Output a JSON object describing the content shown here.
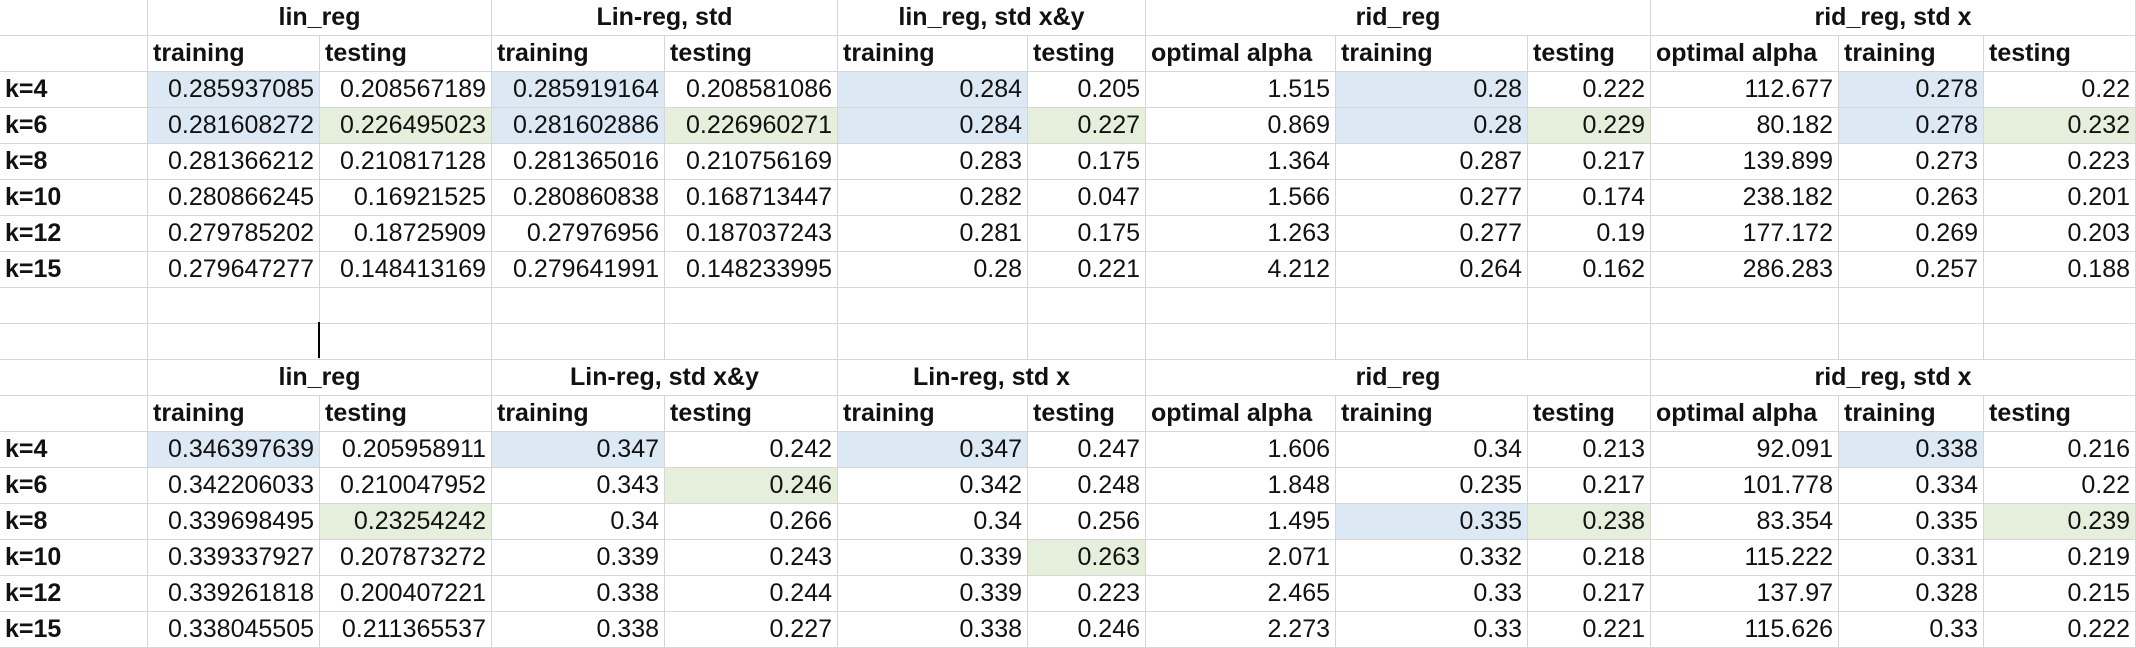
{
  "colors": {
    "blue": "#dde8f5",
    "green": "#e6efdb",
    "grid": "#d6d6d6"
  },
  "rows": [
    "k=4",
    "k=6",
    "k=8",
    "k=10",
    "k=12",
    "k=15"
  ],
  "sub_headers": [
    "training",
    "testing",
    "training",
    "testing",
    "training",
    "testing",
    "optimal alpha",
    "training",
    "testing",
    "optimal alpha",
    "training",
    "testing"
  ],
  "tables": [
    {
      "groups": [
        "lin_reg",
        "Lin-reg, std",
        "lin_reg, std x&y",
        "rid_reg",
        "rid_reg, std x"
      ],
      "data": [
        [
          "0.285937085",
          "0.208567189",
          "0.285919164",
          "0.208581086",
          "0.284",
          "0.205",
          "1.515",
          "0.28",
          "0.222",
          "112.677",
          "0.278",
          "0.22"
        ],
        [
          "0.281608272",
          "0.226495023",
          "0.281602886",
          "0.226960271",
          "0.284",
          "0.227",
          "0.869",
          "0.28",
          "0.229",
          "80.182",
          "0.278",
          "0.232"
        ],
        [
          "0.281366212",
          "0.210817128",
          "0.281365016",
          "0.210756169",
          "0.283",
          "0.175",
          "1.364",
          "0.287",
          "0.217",
          "139.899",
          "0.273",
          "0.223"
        ],
        [
          "0.280866245",
          "0.16921525",
          "0.280860838",
          "0.168713447",
          "0.282",
          "0.047",
          "1.566",
          "0.277",
          "0.174",
          "238.182",
          "0.263",
          "0.201"
        ],
        [
          "0.279785202",
          "0.18725909",
          "0.27976956",
          "0.187037243",
          "0.281",
          "0.175",
          "1.263",
          "0.277",
          "0.19",
          "177.172",
          "0.269",
          "0.203"
        ],
        [
          "0.279647277",
          "0.148413169",
          "0.279641991",
          "0.148233995",
          "0.28",
          "0.221",
          "4.212",
          "0.264",
          "0.162",
          "286.283",
          "0.257",
          "0.188"
        ]
      ],
      "highlights": [
        [
          0,
          0,
          "blue"
        ],
        [
          0,
          2,
          "blue"
        ],
        [
          0,
          4,
          "blue"
        ],
        [
          0,
          7,
          "blue"
        ],
        [
          0,
          10,
          "blue"
        ],
        [
          1,
          0,
          "blue"
        ],
        [
          1,
          2,
          "blue"
        ],
        [
          1,
          4,
          "blue"
        ],
        [
          1,
          7,
          "blue"
        ],
        [
          1,
          10,
          "blue"
        ],
        [
          1,
          1,
          "green"
        ],
        [
          1,
          3,
          "green"
        ],
        [
          1,
          5,
          "green"
        ],
        [
          1,
          8,
          "green"
        ],
        [
          1,
          11,
          "green"
        ]
      ]
    },
    {
      "groups": [
        "lin_reg",
        "Lin-reg, std x&y",
        "Lin-reg, std x",
        "rid_reg",
        "rid_reg, std x"
      ],
      "data": [
        [
          "0.346397639",
          "0.205958911",
          "0.347",
          "0.242",
          "0.347",
          "0.247",
          "1.606",
          "0.34",
          "0.213",
          "92.091",
          "0.338",
          "0.216"
        ],
        [
          "0.342206033",
          "0.210047952",
          "0.343",
          "0.246",
          "0.342",
          "0.248",
          "1.848",
          "0.235",
          "0.217",
          "101.778",
          "0.334",
          "0.22"
        ],
        [
          "0.339698495",
          "0.23254242",
          "0.34",
          "0.266",
          "0.34",
          "0.256",
          "1.495",
          "0.335",
          "0.238",
          "83.354",
          "0.335",
          "0.239"
        ],
        [
          "0.339337927",
          "0.207873272",
          "0.339",
          "0.243",
          "0.339",
          "0.263",
          "2.071",
          "0.332",
          "0.218",
          "115.222",
          "0.331",
          "0.219"
        ],
        [
          "0.339261818",
          "0.200407221",
          "0.338",
          "0.244",
          "0.339",
          "0.223",
          "2.465",
          "0.33",
          "0.217",
          "137.97",
          "0.328",
          "0.215"
        ],
        [
          "0.338045505",
          "0.211365537",
          "0.338",
          "0.227",
          "0.338",
          "0.246",
          "2.273",
          "0.33",
          "0.221",
          "115.626",
          "0.33",
          "0.222"
        ]
      ],
      "highlights": [
        [
          0,
          0,
          "blue"
        ],
        [
          0,
          2,
          "blue"
        ],
        [
          0,
          4,
          "blue"
        ],
        [
          0,
          10,
          "blue"
        ],
        [
          2,
          7,
          "blue"
        ],
        [
          2,
          1,
          "green"
        ],
        [
          1,
          3,
          "green"
        ],
        [
          3,
          5,
          "green"
        ],
        [
          2,
          8,
          "green"
        ],
        [
          2,
          11,
          "green"
        ]
      ]
    }
  ]
}
